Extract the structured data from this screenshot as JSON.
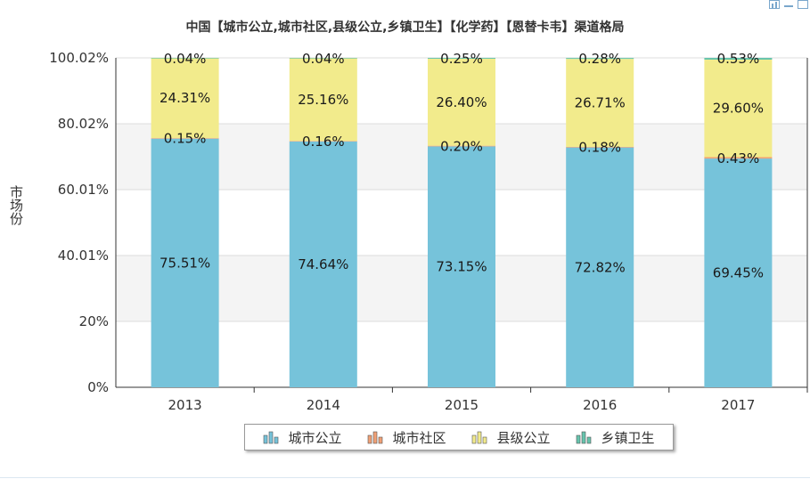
{
  "toolbar": {
    "icons": [
      "chart-type-icon",
      "minimize-icon",
      "restore-icon"
    ]
  },
  "chart_data": {
    "type": "bar",
    "stacked": true,
    "title": "中国【城市公立,城市社区,县级公立,乡镇卫生】【化学药】【恩替卡韦】渠道格局",
    "ylabel": "市场份",
    "xlabel": "",
    "categories": [
      "2013",
      "2014",
      "2015",
      "2016",
      "2017"
    ],
    "y_ticks": [
      "0%",
      "20%",
      "40.01%",
      "60.01%",
      "80.02%",
      "100.02%"
    ],
    "ylim": [
      0,
      100.02
    ],
    "grid": true,
    "legend_position": "bottom",
    "series": [
      {
        "name": "城市公立",
        "color": "#76c3da",
        "values": [
          75.51,
          74.64,
          73.15,
          72.82,
          69.45
        ],
        "labels": [
          "75.51%",
          "74.64%",
          "73.15%",
          "72.82%",
          "69.45%"
        ]
      },
      {
        "name": "城市社区",
        "color": "#f0a075",
        "values": [
          0.15,
          0.16,
          0.2,
          0.18,
          0.43
        ],
        "labels": [
          "0.15%",
          "0.16%",
          "0.20%",
          "0.18%",
          "0.43%"
        ]
      },
      {
        "name": "县级公立",
        "color": "#f2eb8c",
        "values": [
          24.31,
          25.16,
          26.4,
          26.71,
          29.6
        ],
        "labels": [
          "24.31%",
          "25.16%",
          "26.40%",
          "26.71%",
          "29.60%"
        ]
      },
      {
        "name": "乡镇卫生",
        "color": "#66c4ad",
        "values": [
          0.04,
          0.04,
          0.25,
          0.28,
          0.53
        ],
        "labels": [
          "0.04%",
          "0.04%",
          "0.25%",
          "0.28%",
          "0.53%"
        ]
      }
    ]
  }
}
